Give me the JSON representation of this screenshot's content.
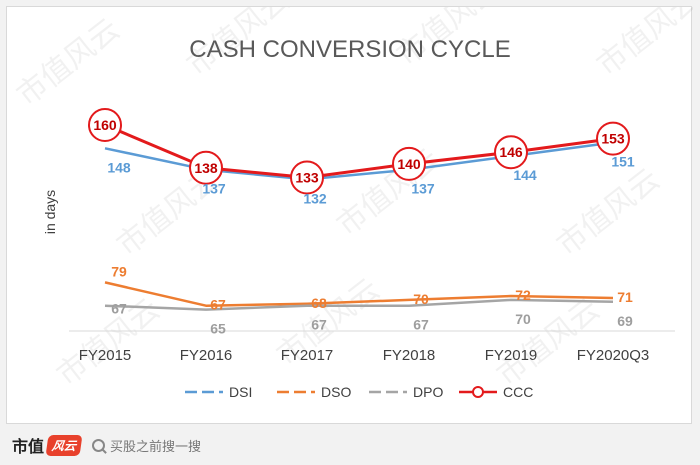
{
  "chart_data": {
    "type": "line",
    "title": "CASH CONVERSION CYCLE",
    "ylabel": "in days",
    "categories": [
      "FY2015",
      "FY2016",
      "FY2017",
      "FY2018",
      "FY2019",
      "FY2020Q3"
    ],
    "series": [
      {
        "name": "DSI",
        "values": [
          148,
          137,
          132,
          137,
          144,
          151
        ],
        "color": "#5b9bd5"
      },
      {
        "name": "DSO",
        "values": [
          79,
          67,
          68,
          70,
          72,
          71
        ],
        "color": "#ed7d31"
      },
      {
        "name": "DPO",
        "values": [
          67,
          65,
          67,
          67,
          70,
          69
        ],
        "color": "#a5a5a5"
      },
      {
        "name": "CCC",
        "values": [
          160,
          138,
          133,
          140,
          146,
          153
        ],
        "color": "#e31a1c"
      }
    ],
    "legend_position": "bottom",
    "grid": false
  },
  "watermark": "市值风云",
  "footer": {
    "brand": "市值",
    "brand_mark": "风云",
    "search_placeholder": "买股之前搜一搜"
  }
}
